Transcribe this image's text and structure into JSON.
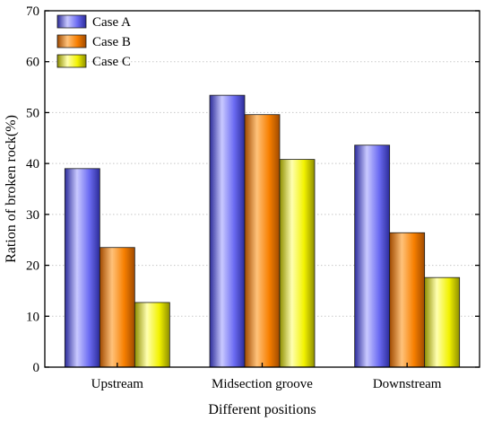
{
  "chart_data": {
    "type": "bar",
    "title": "",
    "xlabel": "Different positions",
    "ylabel": "Ration of broken rock(%)",
    "categories": [
      "Upstream",
      "Midsection groove",
      "Downstream"
    ],
    "series": [
      {
        "name": "Case A",
        "values": [
          39,
          53.4,
          43.6
        ]
      },
      {
        "name": "Case B",
        "values": [
          23.5,
          49.6,
          26.4
        ]
      },
      {
        "name": "Case C",
        "values": [
          12.7,
          40.8,
          17.6
        ]
      }
    ],
    "ylim": [
      0,
      70
    ],
    "yticks": [
      0,
      10,
      20,
      30,
      40,
      50,
      60,
      70
    ],
    "grid": true,
    "legend_position": "top-left",
    "colors": {
      "Case A": {
        "light": "#c9c9ff",
        "base": "#6b6bf2",
        "dark": "#2c2c9a"
      },
      "Case B": {
        "light": "#ffc27a",
        "base": "#f77f00",
        "dark": "#a04a00"
      },
      "Case C": {
        "light": "#ffffb0",
        "base": "#f2f200",
        "dark": "#8f8f00"
      }
    }
  }
}
